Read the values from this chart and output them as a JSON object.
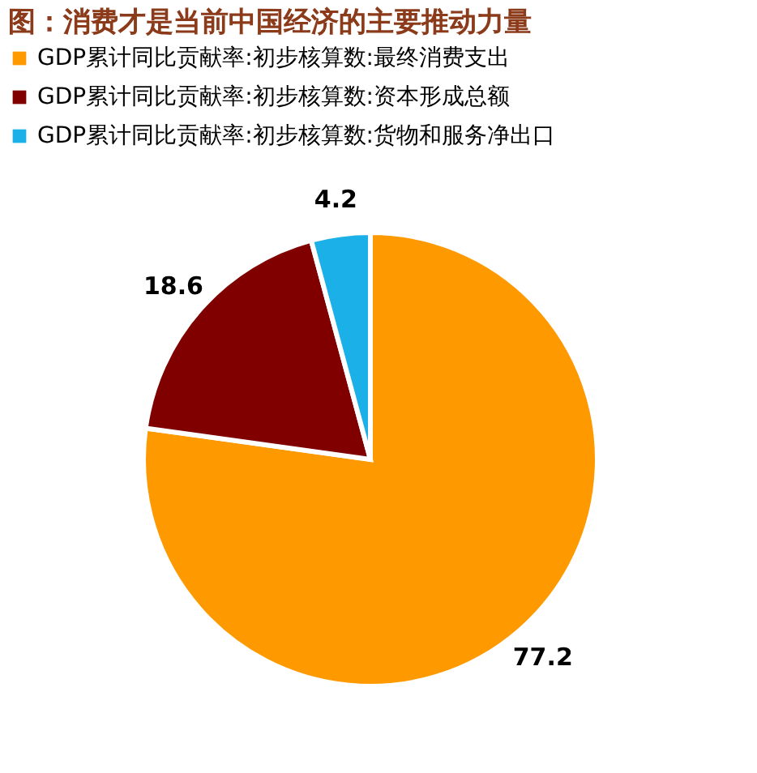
{
  "chart_data": {
    "type": "pie",
    "title": "图：消费才是当前中国经济的主要推动力量",
    "categories": [
      "GDP累计同比贡献率:初步核算数:最终消费支出",
      "GDP累计同比贡献率:初步核算数:资本形成总额",
      "GDP累计同比贡献率:初步核算数:货物和服务净出口"
    ],
    "values": [
      77.2,
      18.6,
      4.2
    ],
    "colors": [
      "#ff9900",
      "#800000",
      "#1cb0e8"
    ],
    "data_labels": true,
    "legend": "top"
  }
}
